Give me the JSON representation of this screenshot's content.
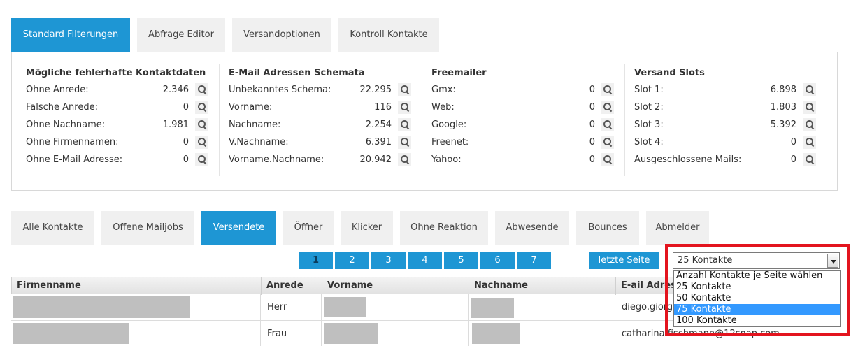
{
  "top_tabs": [
    "Standard Filterungen",
    "Abfrage Editor",
    "Versandoptionen",
    "Kontroll Kontakte"
  ],
  "columns": [
    {
      "title": "Mögliche fehlerhafte Kontaktdaten",
      "rows": [
        {
          "label": "Ohne Anrede:",
          "value": "2.346"
        },
        {
          "label": "Falsche Anrede:",
          "value": "0"
        },
        {
          "label": "Ohne Nachname:",
          "value": "1.981"
        },
        {
          "label": "Ohne Firmennamen:",
          "value": "0"
        },
        {
          "label": "Ohne E-Mail Adresse:",
          "value": "0"
        }
      ]
    },
    {
      "title": "E-Mail Adressen Schemata",
      "rows": [
        {
          "label": "Unbekanntes Schema:",
          "value": "22.295"
        },
        {
          "label": "Vorname:",
          "value": "116"
        },
        {
          "label": "Nachname:",
          "value": "2.254"
        },
        {
          "label": "V.Nachname:",
          "value": "6.391"
        },
        {
          "label": "Vorname.Nachname:",
          "value": "20.942"
        }
      ]
    },
    {
      "title": "Freemailer",
      "rows": [
        {
          "label": "Gmx:",
          "value": "0"
        },
        {
          "label": "Web:",
          "value": "0"
        },
        {
          "label": "Google:",
          "value": "0"
        },
        {
          "label": "Freenet:",
          "value": "0"
        },
        {
          "label": "Yahoo:",
          "value": "0"
        }
      ]
    },
    {
      "title": "Versand Slots",
      "rows": [
        {
          "label": "Slot 1:",
          "value": "6.898"
        },
        {
          "label": "Slot 2:",
          "value": "1.803"
        },
        {
          "label": "Slot 3:",
          "value": "5.392"
        },
        {
          "label": "Slot 4:",
          "value": "0"
        },
        {
          "label": "Ausgeschlossene Mails:",
          "value": "0"
        }
      ]
    }
  ],
  "contact_tabs": [
    "Alle Kontakte",
    "Offene Mailjobs",
    "Versendete",
    "Öffner",
    "Klicker",
    "Ohne Reaktion",
    "Abwesende",
    "Bounces",
    "Abmelder"
  ],
  "pager": {
    "pages": [
      "1",
      "2",
      "3",
      "4",
      "5",
      "6",
      "7"
    ],
    "last_label": "letzte Seite"
  },
  "per_page": {
    "selected": "25 Kontakte",
    "options": [
      "Anzahl Kontakte je Seite wählen",
      "25 Kontakte",
      "50 Kontakte",
      "75 Kontakte",
      "100 Kontakte"
    ]
  },
  "table": {
    "headers": [
      "Firmenname",
      "Anrede",
      "Vorname",
      "Nachname",
      "E-ail Adresse"
    ],
    "rows": [
      {
        "anrede": "Herr",
        "email": "diego.giorgi@"
      },
      {
        "anrede": "Frau",
        "email": "catharina.fischmann@12snap.com"
      }
    ]
  },
  "colors": {
    "accent": "#1e96d4",
    "highlight": "#e3141e",
    "option_selected": "#3399ff"
  }
}
